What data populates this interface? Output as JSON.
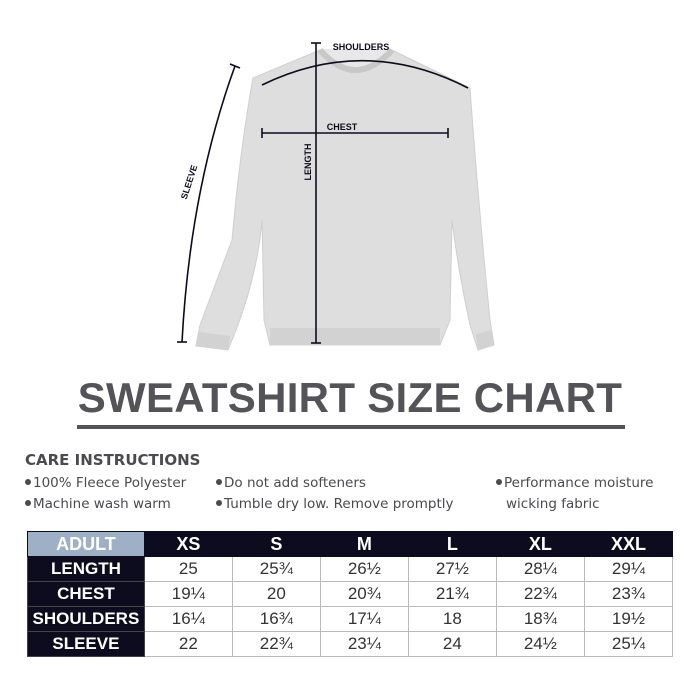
{
  "figure": {
    "labels": {
      "shoulders": "SHOULDERS",
      "chest": "CHEST",
      "length": "LENGTH",
      "sleeve": "SLEEVE"
    },
    "garment_color": "#dcdcdc",
    "line_color": "#0d0c1e"
  },
  "title": "SWEATSHIRT SIZE CHART",
  "care": {
    "heading": "CARE INSTRUCTIONS",
    "items": [
      "100% Fleece Polyester",
      "Machine wash warm",
      "Do not add softeners",
      "Tumble dry low. Remove promptly",
      "Performance moisture",
      "wicking fabric"
    ]
  },
  "table": {
    "corner": "ADULT",
    "sizes": [
      "XS",
      "S",
      "M",
      "L",
      "XL",
      "XXL"
    ],
    "rows": [
      {
        "label": "LENGTH",
        "values": [
          "25",
          "25¾",
          "26½",
          "27½",
          "28¼",
          "29¼"
        ]
      },
      {
        "label": "CHEST",
        "values": [
          "19¼",
          "20",
          "20¾",
          "21¾",
          "22¾",
          "23¾"
        ]
      },
      {
        "label": "SHOULDERS",
        "values": [
          "16¼",
          "16¾",
          "17¼",
          "18",
          "18¾",
          "19½"
        ]
      },
      {
        "label": "SLEEVE",
        "values": [
          "22",
          "22¾",
          "23¼",
          "24",
          "24½",
          "25¼"
        ]
      }
    ],
    "colors": {
      "header_bg": "#0d0c1e",
      "corner_bg": "#9eb0c6"
    }
  }
}
